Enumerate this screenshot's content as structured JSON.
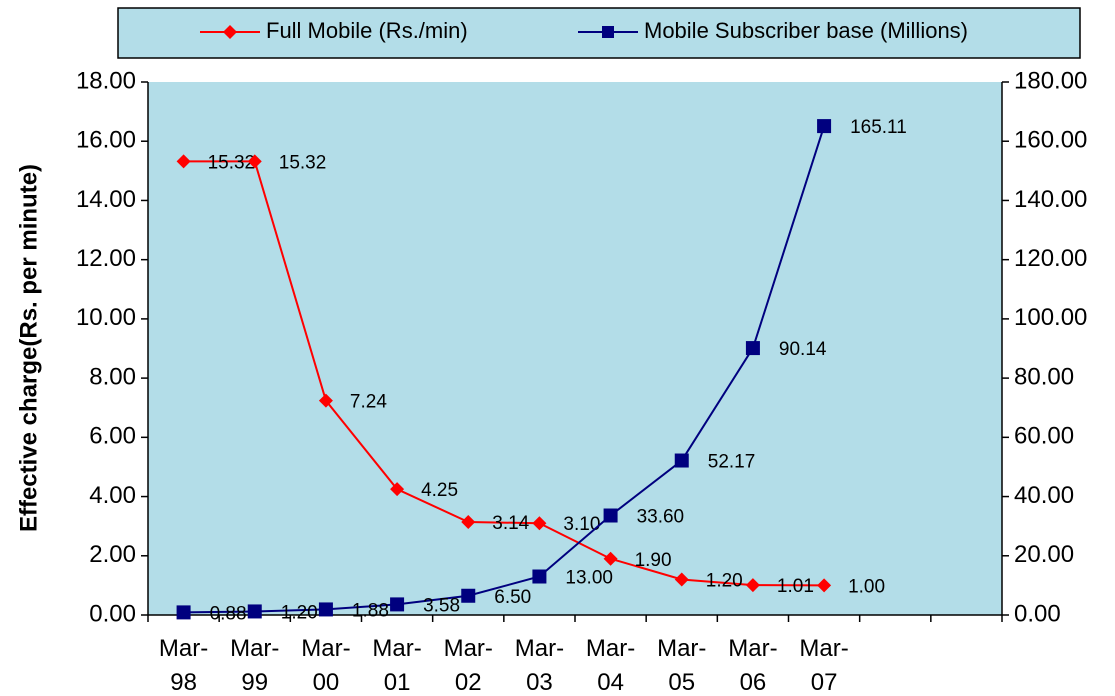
{
  "chart_data": {
    "type": "line",
    "y_label": "Effective charge(Rs. per minute)",
    "categories": [
      "Mar-98",
      "Mar-99",
      "Mar-00",
      "Mar-01",
      "Mar-02",
      "Mar-03",
      "Mar-04",
      "Mar-05",
      "Mar-06",
      "Mar-07",
      null,
      null
    ],
    "series": [
      {
        "name": "Full Mobile (Rs./min)",
        "color": "#ff0000",
        "marker": "diamond",
        "values": [
          15.32,
          15.32,
          7.24,
          4.25,
          3.14,
          3.1,
          1.9,
          1.2,
          1.01,
          1.0,
          null,
          null
        ],
        "value_labels": [
          "15.32",
          "15.32",
          "7.24",
          "4.25",
          "3.14",
          "3.10",
          "1.90",
          "1.20",
          "1.01",
          "1.00",
          null,
          null
        ]
      },
      {
        "name": "Mobile Subscriber base (Millions)",
        "color": "#00007f",
        "marker": "square",
        "axis": "y2",
        "values": [
          0.88,
          1.2,
          1.88,
          3.58,
          6.5,
          13.0,
          33.6,
          52.17,
          90.14,
          165.11,
          null,
          null
        ],
        "value_labels": [
          "0.88",
          "1.20",
          "1.88",
          "3.58",
          "6.50",
          "13.00",
          "33.60",
          "52.17",
          "90.14",
          "165.11",
          null,
          null
        ]
      }
    ],
    "ylim": [
      0,
      18
    ],
    "yticks": [
      {
        "value": 0,
        "label": "0.00"
      },
      {
        "value": 2,
        "label": "2.00"
      },
      {
        "value": 4,
        "label": "4.00"
      },
      {
        "value": 6,
        "label": "6.00"
      },
      {
        "value": 8,
        "label": "8.00"
      },
      {
        "value": 10,
        "label": "10.00"
      },
      {
        "value": 12,
        "label": "12.00"
      },
      {
        "value": 14,
        "label": "14.00"
      },
      {
        "value": 16,
        "label": "16.00"
      },
      {
        "value": 18,
        "label": "18.00"
      }
    ],
    "y2lim": [
      0,
      180
    ],
    "y2ticks": [
      {
        "value": 0,
        "label": "0.00"
      },
      {
        "value": 20,
        "label": "20.00"
      },
      {
        "value": 40,
        "label": "40.00"
      },
      {
        "value": 60,
        "label": "60.00"
      },
      {
        "value": 80,
        "label": "80.00"
      },
      {
        "value": 100,
        "label": "100.00"
      },
      {
        "value": 120,
        "label": "120.00"
      },
      {
        "value": 140,
        "label": "140.00"
      },
      {
        "value": 160,
        "label": "160.00"
      },
      {
        "value": 180,
        "label": "180.00"
      }
    ],
    "legend": "top"
  }
}
